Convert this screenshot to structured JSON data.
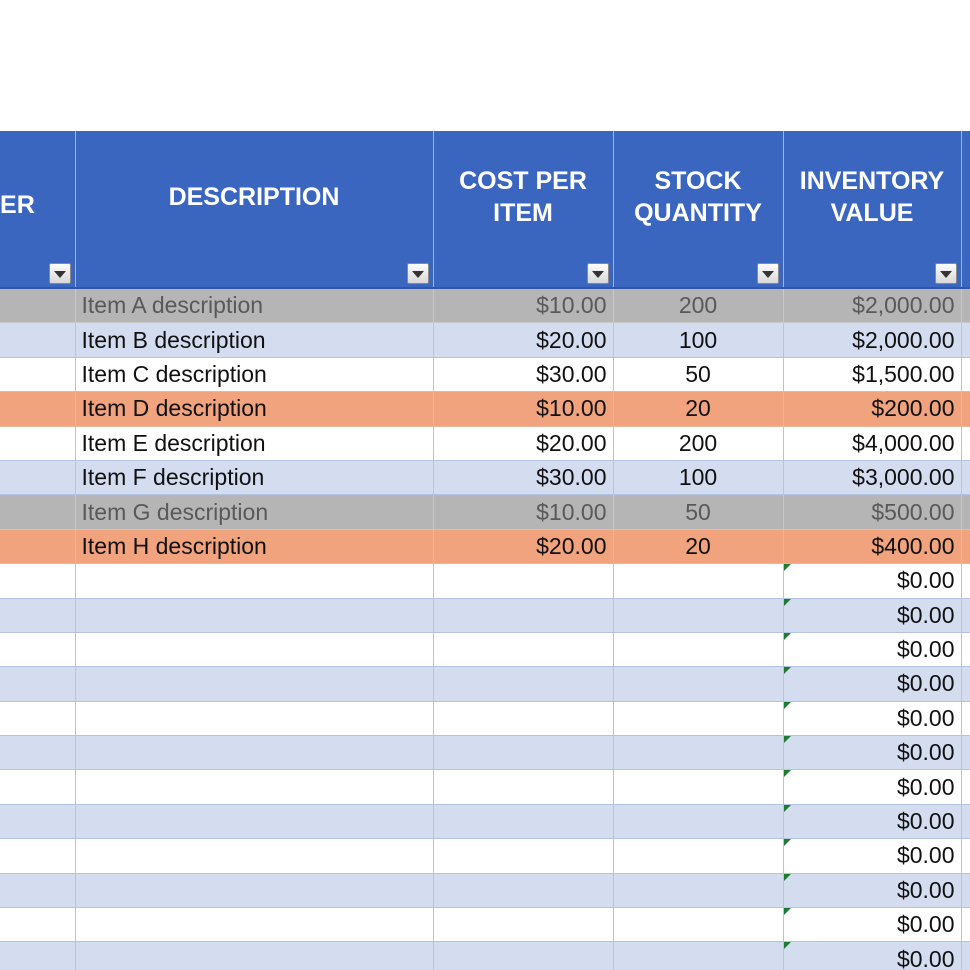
{
  "headers": {
    "col0": "RER",
    "description": "DESCRIPTION",
    "cost_line1": "COST PER",
    "cost_line2": "ITEM",
    "stock_line1": "STOCK",
    "stock_line2": "QUANTITY",
    "inv_line1": "INVENTORY",
    "inv_line2": "VALUE"
  },
  "rows": [
    {
      "style": "gray",
      "description": "Item A description",
      "cost": "$10.00",
      "qty": "200",
      "value": "$2,000.00"
    },
    {
      "style": "blue",
      "description": "Item B description",
      "cost": "$20.00",
      "qty": "100",
      "value": "$2,000.00"
    },
    {
      "style": "white",
      "description": "Item C description",
      "cost": "$30.00",
      "qty": "50",
      "value": "$1,500.00"
    },
    {
      "style": "orange",
      "description": "Item D description",
      "cost": "$10.00",
      "qty": "20",
      "value": "$200.00"
    },
    {
      "style": "white",
      "description": "Item E description",
      "cost": "$20.00",
      "qty": "200",
      "value": "$4,000.00"
    },
    {
      "style": "blue",
      "description": "Item F description",
      "cost": "$30.00",
      "qty": "100",
      "value": "$3,000.00"
    },
    {
      "style": "gray",
      "description": "Item G description",
      "cost": "$10.00",
      "qty": "50",
      "value": "$500.00"
    },
    {
      "style": "orange",
      "description": "Item H description",
      "cost": "$20.00",
      "qty": "20",
      "value": "$400.00"
    },
    {
      "style": "white",
      "description": "",
      "cost": "",
      "qty": "",
      "value": "$0.00"
    },
    {
      "style": "blue",
      "description": "",
      "cost": "",
      "qty": "",
      "value": "$0.00"
    },
    {
      "style": "white",
      "description": "",
      "cost": "",
      "qty": "",
      "value": "$0.00"
    },
    {
      "style": "blue",
      "description": "",
      "cost": "",
      "qty": "",
      "value": "$0.00"
    },
    {
      "style": "white",
      "description": "",
      "cost": "",
      "qty": "",
      "value": "$0.00"
    },
    {
      "style": "blue",
      "description": "",
      "cost": "",
      "qty": "",
      "value": "$0.00"
    },
    {
      "style": "white",
      "description": "",
      "cost": "",
      "qty": "",
      "value": "$0.00"
    },
    {
      "style": "blue",
      "description": "",
      "cost": "",
      "qty": "",
      "value": "$0.00"
    },
    {
      "style": "white",
      "description": "",
      "cost": "",
      "qty": "",
      "value": "$0.00"
    },
    {
      "style": "blue",
      "description": "",
      "cost": "",
      "qty": "",
      "value": "$0.00"
    },
    {
      "style": "white",
      "description": "",
      "cost": "",
      "qty": "",
      "value": "$0.00"
    },
    {
      "style": "blue",
      "description": "",
      "cost": "",
      "qty": "",
      "value": "$0.00"
    }
  ],
  "colors": {
    "header_bg": "#3a66c0",
    "band_blue": "#d4ddf0",
    "row_gray": "#b5b5b5",
    "row_orange": "#f0a37c",
    "formula_marker": "#1e7b34"
  },
  "icons": {
    "filter": "chevron-down-filter-icon",
    "formula_marker": "green-triangle-icon"
  }
}
